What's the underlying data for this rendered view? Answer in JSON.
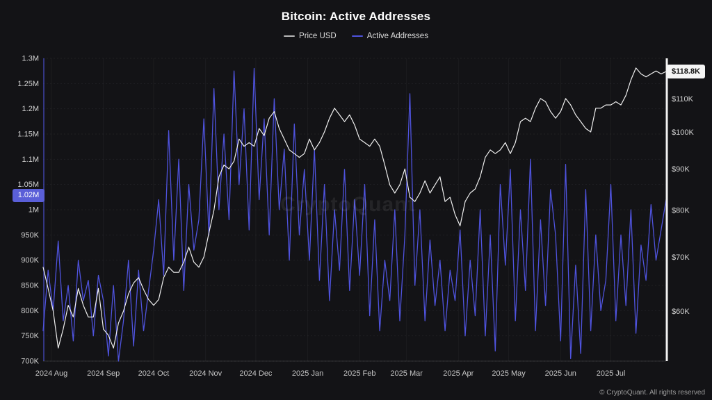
{
  "title": "Bitcoin: Active Addresses",
  "watermark": "CryptoQuant",
  "footer": "© CryptoQuant. All rights reserved",
  "legend": [
    {
      "label": "Price USD",
      "color": "#b9b9b9"
    },
    {
      "label": "Active Addresses",
      "color": "#4f53de"
    }
  ],
  "colors": {
    "background": "#131316",
    "price_line": "#efefef",
    "address_line": "#4f53de",
    "left_badge_bg": "#5a5fd8",
    "right_badge_bg": "#f5f5f5",
    "axis_text": "#d2d2d2",
    "grid": "rgba(255,255,255,0.06)"
  },
  "chart_data": {
    "type": "line",
    "title": "Bitcoin: Active Addresses",
    "x_tick_labels": [
      "2024 Aug",
      "2024 Sep",
      "2024 Oct",
      "2024 Nov",
      "2024 Dec",
      "2025 Jan",
      "2025 Feb",
      "2025 Mar",
      "2025 Apr",
      "2025 May",
      "2025 Jun",
      "2025 Jul"
    ],
    "x_tick_positions_days": [
      5,
      36,
      66,
      97,
      127,
      158,
      189,
      217,
      248,
      278,
      309,
      339
    ],
    "x_span_days": 372,
    "left_axis": {
      "title": "Active Addresses",
      "unit": "thousand addresses",
      "scale": "linear",
      "range": [
        700,
        1300
      ],
      "ticks": [
        {
          "v": 1300,
          "label": "1.3M"
        },
        {
          "v": 1250,
          "label": "1.25M"
        },
        {
          "v": 1200,
          "label": "1.2M"
        },
        {
          "v": 1150,
          "label": "1.15M"
        },
        {
          "v": 1100,
          "label": "1.1M"
        },
        {
          "v": 1050,
          "label": "1.05M"
        },
        {
          "v": 1000,
          "label": "1M"
        },
        {
          "v": 950,
          "label": "950K"
        },
        {
          "v": 900,
          "label": "900K"
        },
        {
          "v": 850,
          "label": "850K"
        },
        {
          "v": 800,
          "label": "800K"
        },
        {
          "v": 750,
          "label": "750K"
        },
        {
          "v": 700,
          "label": "700K"
        }
      ],
      "current": {
        "v": 1020,
        "label": "1.02M"
      }
    },
    "right_axis": {
      "title": "Price USD",
      "unit": "thousand USD",
      "scale": "log",
      "ticks": [
        {
          "v": 110,
          "label": "$110K"
        },
        {
          "v": 100,
          "label": "$100K"
        },
        {
          "v": 90,
          "label": "$90K"
        },
        {
          "v": 80,
          "label": "$80K"
        },
        {
          "v": 70,
          "label": "$70K"
        },
        {
          "v": 60,
          "label": "$60K"
        }
      ],
      "current": {
        "v": 118.8,
        "label": "$118.8K"
      }
    },
    "series": [
      {
        "name": "Active Addresses",
        "axis": "left",
        "color": "#4f53de",
        "width": 1.3,
        "values": [
          760,
          880,
          800,
          938,
          780,
          850,
          740,
          900,
          820,
          860,
          750,
          870,
          820,
          710,
          850,
          700,
          780,
          900,
          730,
          880,
          760,
          840,
          920,
          1020,
          870,
          1157,
          900,
          1100,
          840,
          1050,
          920,
          980,
          1180,
          950,
          1240,
          1000,
          1150,
          980,
          1275,
          1050,
          1200,
          960,
          1280,
          1020,
          1180,
          950,
          1220,
          1000,
          1120,
          900,
          1170,
          950,
          1080,
          900,
          1120,
          860,
          1050,
          820,
          1000,
          880,
          1080,
          840,
          1020,
          870,
          1050,
          790,
          980,
          760,
          900,
          820,
          1000,
          780,
          950,
          1230,
          850,
          1000,
          780,
          940,
          810,
          900,
          760,
          880,
          820,
          960,
          750,
          900,
          790,
          1000,
          750,
          950,
          720,
          1050,
          890,
          1080,
          780,
          1000,
          840,
          1100,
          760,
          980,
          810,
          1040,
          950,
          740,
          1090,
          705,
          890,
          715,
          1040,
          760,
          950,
          800,
          860,
          1050,
          780,
          950,
          810,
          1000,
          755,
          930,
          860,
          1010,
          900,
          960,
          1020
        ]
      },
      {
        "name": "Price USD",
        "axis": "right",
        "color": "#efefef",
        "width": 1.2,
        "values": [
          68,
          64,
          60,
          54,
          57,
          61,
          59,
          64,
          61,
          59,
          59,
          64,
          57,
          56,
          54,
          58,
          60,
          63,
          65,
          66,
          63.8,
          62,
          61,
          62,
          66,
          68,
          67,
          67,
          69,
          72,
          69,
          68,
          70,
          75,
          80,
          88,
          91,
          90,
          92,
          98,
          96,
          97,
          96,
          101,
          99,
          104,
          106,
          101,
          98,
          95,
          94,
          93,
          94,
          98,
          95,
          97,
          100,
          104,
          107,
          105,
          103,
          105,
          102,
          98,
          97,
          96,
          98,
          96,
          91,
          86,
          84,
          86,
          90,
          83,
          82,
          84,
          87,
          84,
          86,
          88,
          82,
          83,
          79,
          76.5,
          82,
          84,
          85,
          88,
          93,
          95,
          94,
          95,
          97,
          94,
          97,
          103,
          104,
          103,
          107,
          110,
          109,
          106,
          104,
          106,
          110,
          108,
          105,
          103,
          101,
          100,
          107,
          107,
          108,
          108,
          109,
          108,
          111,
          116,
          120,
          118,
          117,
          118,
          119,
          118,
          118.8
        ]
      }
    ]
  }
}
